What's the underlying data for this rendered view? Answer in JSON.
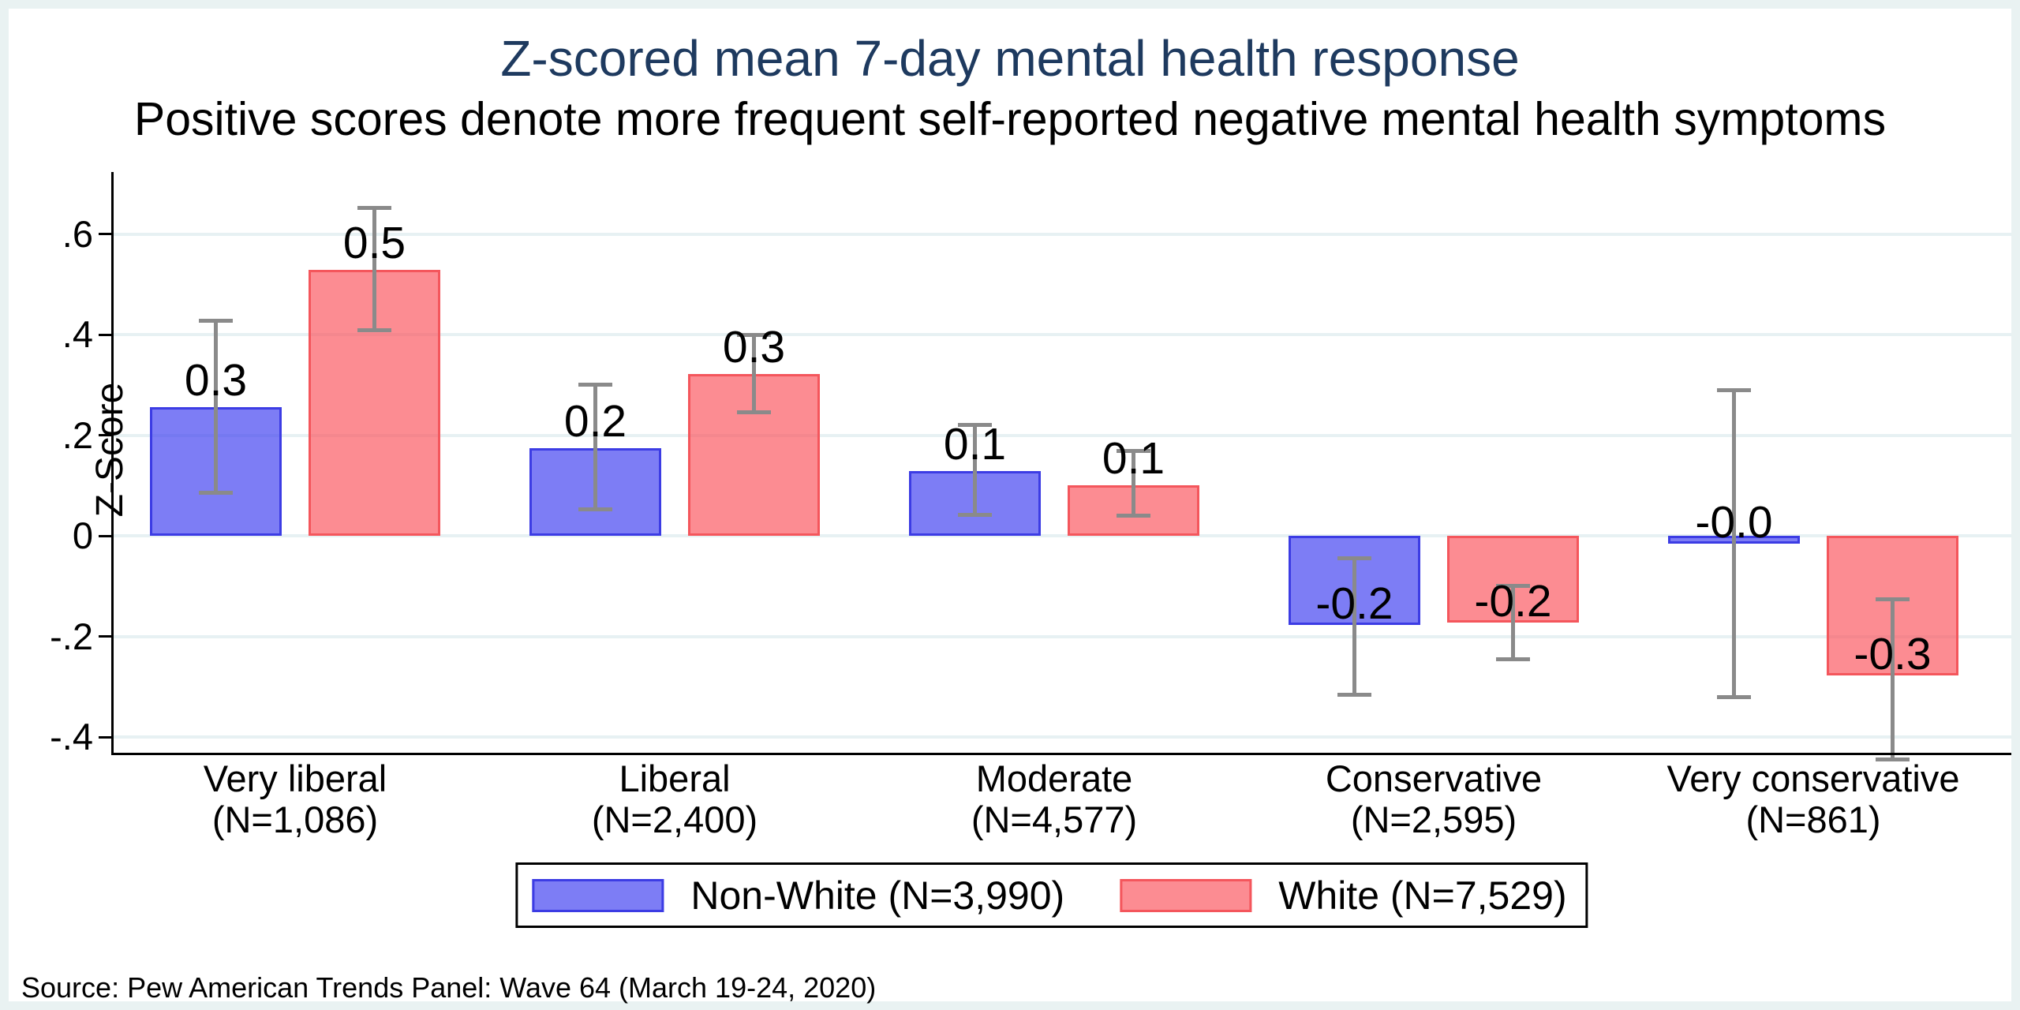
{
  "title": "Z-scored mean 7-day mental health response",
  "subtitle": "Positive scores denote more frequent self-reported negative mental health symptoms",
  "source_note": "Source: Pew American Trends Panel: Wave 64 (March 19-24, 2020)",
  "colors": {
    "title_text": "#1e3a5f",
    "nonwhite_fill": "rgba(64,64,240,0.68)",
    "nonwhite_border": "#3c3ce4",
    "white_fill": "rgba(250,80,90,0.66)",
    "white_border": "#f4565c",
    "error_bar": "#8a8a8a",
    "gridline": "#e7f1f3",
    "frame_background": "#e9f2f2"
  },
  "y_axis": {
    "label": "Z-Score",
    "ticks": [
      {
        "label": ".6",
        "value": 0.6
      },
      {
        "label": ".4",
        "value": 0.4
      },
      {
        "label": ".2",
        "value": 0.2
      },
      {
        "label": "0",
        "value": 0.0
      },
      {
        "label": "-.2",
        "value": -0.2
      },
      {
        "label": "-.4",
        "value": -0.4
      }
    ]
  },
  "legend": {
    "items": [
      {
        "label": "Non-White (N=3,990)",
        "fill": "rgba(64,64,240,0.68)",
        "border": "#3c3ce4"
      },
      {
        "label": "White (N=7,529)",
        "fill": "rgba(250,80,90,0.66)",
        "border": "#f4565c"
      }
    ]
  },
  "chart_data": {
    "type": "bar",
    "title": "Z-scored mean 7-day mental health response",
    "subtitle": "Positive scores denote more frequent self-reported negative mental health symptoms",
    "ylabel": "Z-Score",
    "ylim": [
      -0.43,
      0.72
    ],
    "grid": true,
    "legend_position": "bottom",
    "categories": [
      {
        "label": "Very liberal",
        "n_label": "(N=1,086)"
      },
      {
        "label": "Liberal",
        "n_label": "(N=2,400)"
      },
      {
        "label": "Moderate",
        "n_label": "(N=4,577)"
      },
      {
        "label": "Conservative",
        "n_label": "(N=2,595)"
      },
      {
        "label": "Very conservative",
        "n_label": "(N=861)"
      }
    ],
    "series": [
      {
        "name": "Non-White (N=3,990)",
        "values": [
          0.256,
          0.174,
          0.129,
          -0.178,
          -0.015
        ],
        "ci_low": [
          0.086,
          0.053,
          0.041,
          -0.316,
          -0.32
        ],
        "ci_high": [
          0.428,
          0.3,
          0.221,
          -0.045,
          0.29
        ],
        "bar_labels": [
          "0.3",
          "0.2",
          "0.1",
          "-0.2",
          "-0.0"
        ]
      },
      {
        "name": "White (N=7,529)",
        "values": [
          0.529,
          0.322,
          0.1,
          -0.172,
          -0.278
        ],
        "ci_low": [
          0.409,
          0.245,
          0.04,
          -0.246,
          -0.445
        ],
        "ci_high": [
          0.651,
          0.4,
          0.168,
          -0.1,
          -0.126
        ],
        "bar_labels": [
          "0.5",
          "0.3",
          "0.1",
          "-0.2",
          "-0.3"
        ]
      }
    ]
  }
}
